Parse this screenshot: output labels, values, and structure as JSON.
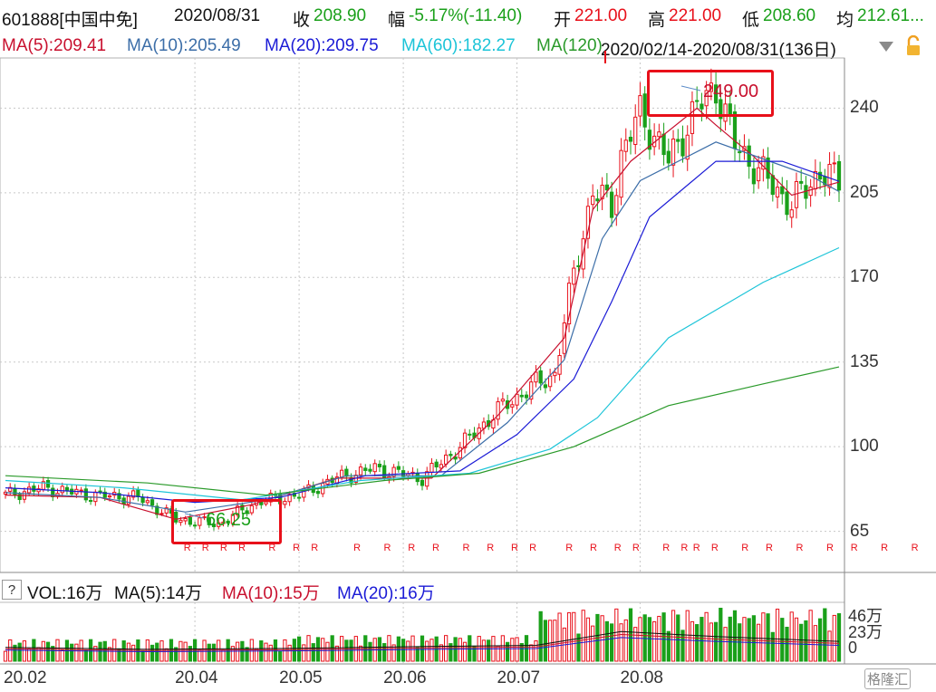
{
  "header": {
    "code": "601888[中国中免]",
    "date": "2020/08/31",
    "close_label": "收",
    "close_value": "208.90",
    "change_label": "幅",
    "change_value": "-5.17%(-11.40)",
    "open_label": "开",
    "open_value": "221.00",
    "high_label": "高",
    "high_value": "221.00",
    "low_label": "低",
    "low_value": "208.60",
    "avg_label": "均",
    "avg_value": "212.61...",
    "ma5": "MA(5):209.41",
    "ma10": "MA(10):205.49",
    "ma20": "MA(20):209.75",
    "ma60": "MA(60):182.27",
    "ma120": "MA(120)",
    "range": "2020/02/14-2020/08/31(136日)"
  },
  "colors": {
    "up": "#e8101a",
    "down": "#1aa01a",
    "ma5": "#c8102e",
    "ma10": "#3c6ea8",
    "ma20": "#1b1bd6",
    "ma60": "#1cc4d8",
    "ma120": "#2a9a2a",
    "grid": "#c8c8c8"
  },
  "annotations": {
    "high": "249.00",
    "low": "66.25",
    "flag": "R"
  },
  "volume_header": {
    "vol": "VOL:16万",
    "ma5": "MA(5):14万",
    "ma10": "MA(10):15万",
    "ma20": "MA(20):16万"
  },
  "icons": {
    "help": "?",
    "lock": "lock-icon",
    "menu": "chevron-down-icon",
    "watermark": "格隆汇"
  },
  "chart_data": {
    "type": "candlestick",
    "x_tick_labels": [
      "20.02",
      "20.04",
      "20.05",
      "20.06",
      "20.07",
      "20.08"
    ],
    "y_ticks": [
      65,
      100,
      135,
      170,
      205,
      240
    ],
    "ylim": [
      48,
      260
    ],
    "volume_ticks": [
      "46万",
      "23万",
      "0"
    ],
    "volume_ylim": [
      0,
      55
    ],
    "n": 136,
    "ohlc_segments": [
      [
        0,
        80
      ],
      [
        8,
        83
      ],
      [
        18,
        80
      ],
      [
        28,
        79
      ],
      [
        36,
        70
      ],
      [
        45,
        68
      ],
      [
        53,
        77
      ],
      [
        62,
        80
      ],
      [
        70,
        87
      ],
      [
        78,
        91
      ],
      [
        88,
        87
      ],
      [
        96,
        100
      ],
      [
        104,
        115
      ],
      [
        112,
        126
      ],
      [
        116,
        130
      ],
      [
        120,
        172
      ],
      [
        124,
        205
      ],
      [
        128,
        200
      ],
      [
        130,
        220
      ],
      [
        134,
        238
      ],
      [
        136,
        232
      ],
      [
        140,
        218
      ],
      [
        146,
        240
      ],
      [
        150,
        249
      ],
      [
        154,
        225
      ],
      [
        160,
        212
      ],
      [
        166,
        200
      ],
      [
        172,
        214
      ],
      [
        176,
        208.9
      ]
    ],
    "moving_averages": {
      "MA5": [
        [
          0,
          80
        ],
        [
          20,
          79
        ],
        [
          36,
          70
        ],
        [
          52,
          76
        ],
        [
          70,
          87
        ],
        [
          90,
          87
        ],
        [
          104,
          113
        ],
        [
          118,
          145
        ],
        [
          124,
          198
        ],
        [
          132,
          218
        ],
        [
          146,
          240
        ],
        [
          150,
          233
        ],
        [
          158,
          220
        ],
        [
          166,
          204
        ],
        [
          176,
          209.41
        ]
      ],
      "MA10": [
        [
          0,
          81
        ],
        [
          20,
          79
        ],
        [
          38,
          73
        ],
        [
          55,
          78
        ],
        [
          72,
          88
        ],
        [
          92,
          88
        ],
        [
          106,
          110
        ],
        [
          118,
          136
        ],
        [
          126,
          186
        ],
        [
          134,
          210
        ],
        [
          150,
          226
        ],
        [
          160,
          219
        ],
        [
          170,
          212
        ],
        [
          176,
          205.49
        ]
      ],
      "MA20": [
        [
          0,
          83
        ],
        [
          20,
          81
        ],
        [
          40,
          77
        ],
        [
          58,
          79
        ],
        [
          76,
          88
        ],
        [
          96,
          90
        ],
        [
          108,
          105
        ],
        [
          120,
          128
        ],
        [
          128,
          160
        ],
        [
          136,
          195
        ],
        [
          150,
          218
        ],
        [
          164,
          218
        ],
        [
          176,
          209.75
        ]
      ],
      "MA60": [
        [
          0,
          86
        ],
        [
          25,
          83
        ],
        [
          50,
          78
        ],
        [
          75,
          86
        ],
        [
          98,
          89
        ],
        [
          115,
          99
        ],
        [
          125,
          112
        ],
        [
          140,
          145
        ],
        [
          160,
          168
        ],
        [
          176,
          182.27
        ]
      ],
      "MA120": [
        [
          0,
          88
        ],
        [
          30,
          85
        ],
        [
          55,
          80
        ],
        [
          80,
          86
        ],
        [
          100,
          89
        ],
        [
          120,
          100
        ],
        [
          140,
          117
        ],
        [
          160,
          126
        ],
        [
          176,
          133
        ]
      ]
    },
    "r_marks_x": [
      30,
      33,
      36,
      39,
      44,
      48,
      51,
      58,
      63,
      67,
      71,
      76,
      80,
      84,
      87,
      93,
      97,
      101,
      104,
      109,
      112,
      114,
      117,
      122,
      126,
      131,
      136,
      140,
      145,
      150,
      156,
      161,
      166,
      170,
      176
    ],
    "high_point": 249.0,
    "low_point": 66.25,
    "volume_ma5_label": "MA(5):14万"
  }
}
